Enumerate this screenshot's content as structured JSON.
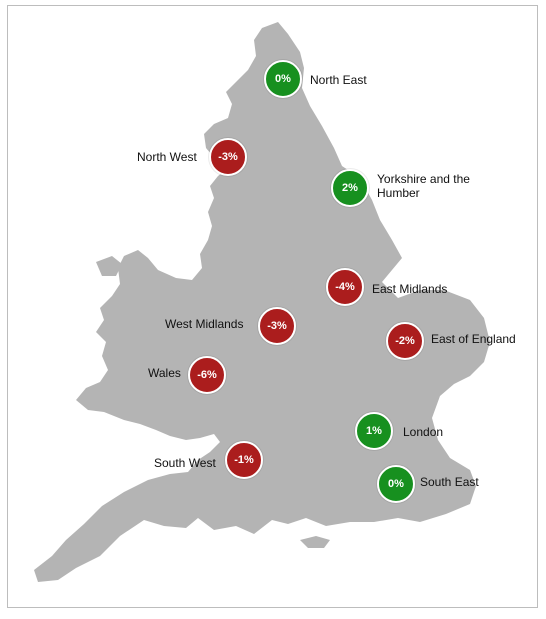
{
  "colors": {
    "land": "#b4b4b4",
    "positive": "#17901f",
    "negative": "#ab1d1d",
    "border": "#bdbdbd"
  },
  "regions": [
    {
      "id": "north-east",
      "name": "North East",
      "value": "0%",
      "status": "positive"
    },
    {
      "id": "north-west",
      "name": "North West",
      "value": "-3%",
      "status": "negative"
    },
    {
      "id": "yorkshire",
      "name": "Yorkshire and the Humber",
      "value": "2%",
      "status": "positive"
    },
    {
      "id": "east-midlands",
      "name": "East Midlands",
      "value": "-4%",
      "status": "negative"
    },
    {
      "id": "west-midlands",
      "name": "West Midlands",
      "value": "-3%",
      "status": "negative"
    },
    {
      "id": "east-of-england",
      "name": "East of England",
      "value": "-2%",
      "status": "negative"
    },
    {
      "id": "wales",
      "name": "Wales",
      "value": "-6%",
      "status": "negative"
    },
    {
      "id": "london",
      "name": "London",
      "value": "1%",
      "status": "positive"
    },
    {
      "id": "south-west",
      "name": "South West",
      "value": "-1%",
      "status": "negative"
    },
    {
      "id": "south-east",
      "name": "South East",
      "value": "0%",
      "status": "positive"
    }
  ]
}
